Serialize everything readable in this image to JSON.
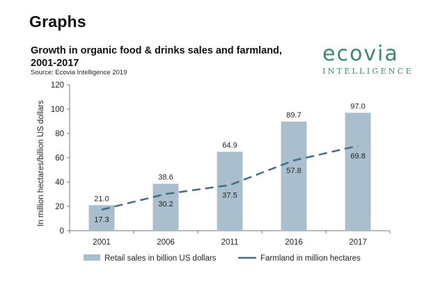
{
  "page": {
    "heading": "Graphs"
  },
  "logo": {
    "word": "ecovia",
    "sub": "INTELLIGENCE"
  },
  "chart_data": {
    "type": "bar",
    "title": "Growth in organic food & drinks sales and farmland, 2001-2017",
    "source": "Source: Ecovia Intelligence 2019",
    "categories": [
      "2001",
      "2006",
      "2011",
      "2016",
      "2017"
    ],
    "series": [
      {
        "name": "Retail sales in billion US dollars",
        "kind": "bar",
        "values": [
          21.0,
          38.6,
          64.9,
          89.7,
          97.0
        ],
        "labels": [
          "21.0",
          "38.6",
          "64.9",
          "89.7",
          "97.0"
        ],
        "color": "#a9bfcd"
      },
      {
        "name": "Farmland in million hectares",
        "kind": "line",
        "style": "dashed",
        "values": [
          17.3,
          30.2,
          37.5,
          57.8,
          69.8
        ],
        "labels": [
          "17.3",
          "30.2",
          "37.5",
          "57.8",
          "69.8"
        ],
        "color": "#3f6e86"
      }
    ],
    "ylabel": "In million hectares/billion US dollars",
    "xlabel": "",
    "ylim": [
      0,
      120
    ],
    "yticks": [
      "0",
      "20",
      "40",
      "60",
      "80",
      "100",
      "120"
    ],
    "grid": false,
    "legend": "bottom"
  }
}
